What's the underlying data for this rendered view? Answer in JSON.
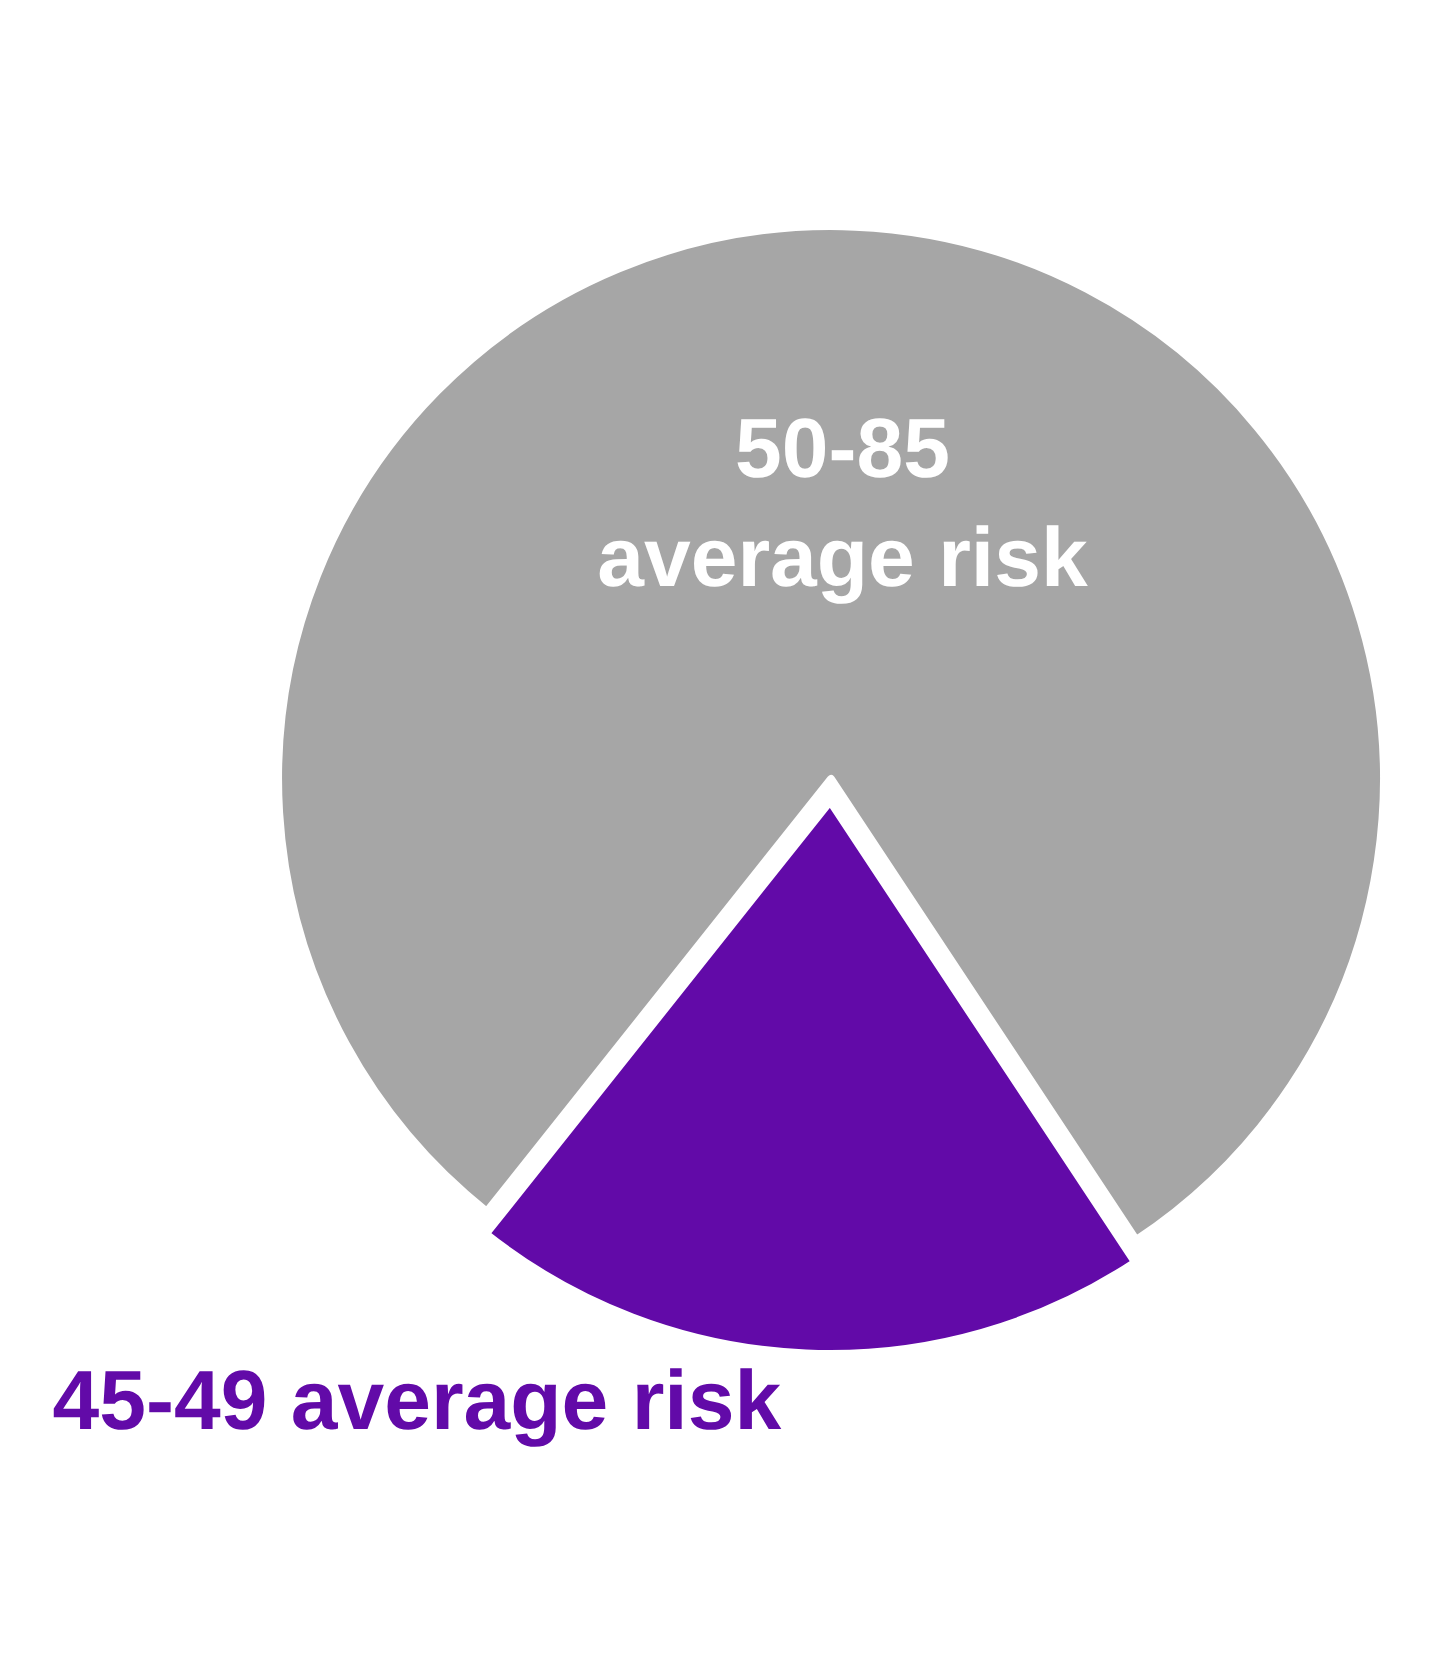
{
  "chart_data": {
    "type": "pie",
    "categories": [
      "50-85\naverage risk",
      "45-49 average risk"
    ],
    "values": [
      80,
      20
    ],
    "colors": [
      "#a6a6a6",
      "#620aa8"
    ],
    "legend": false
  }
}
